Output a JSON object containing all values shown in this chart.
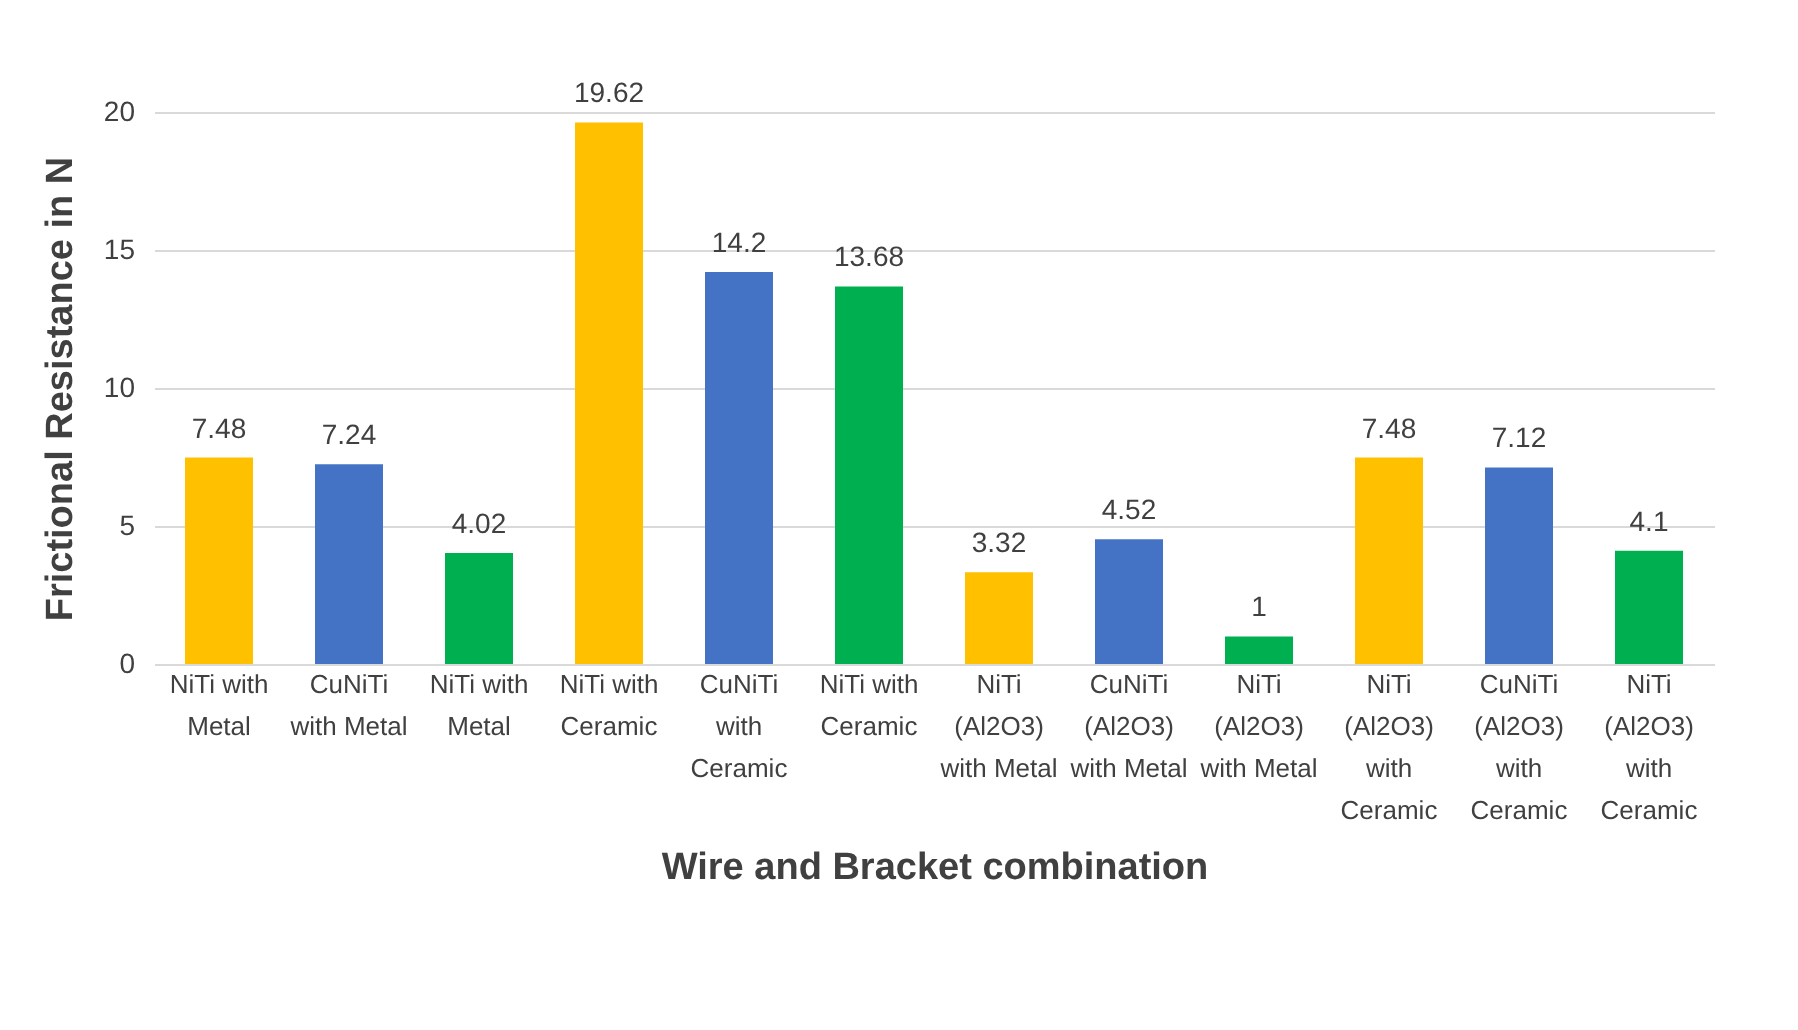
{
  "chart_data": {
    "type": "bar",
    "xlabel": "Wire and Bracket combination",
    "ylabel": "Frictional Resistance in N",
    "categories": [
      "NiTi with Metal",
      "CuNiTi with Metal",
      "NiTi with Metal",
      "NiTi with Ceramic",
      "CuNiTi with Ceramic",
      "NiTi with Ceramic",
      "NiTi (Al2O3) with Metal",
      "CuNiTi (Al2O3) with Metal",
      "NiTi (Al2O3) with Metal",
      "NiTi (Al2O3) with Ceramic",
      "CuNiTi (Al2O3) with Ceramic",
      "NiTi (Al2O3) with Ceramic"
    ],
    "values": [
      7.48,
      7.24,
      4.02,
      19.62,
      14.2,
      13.68,
      3.32,
      4.52,
      1,
      7.48,
      7.12,
      4.1
    ],
    "colors": [
      "#ffc000",
      "#4472c4",
      "#00b050",
      "#ffc000",
      "#4472c4",
      "#00b050",
      "#ffc000",
      "#4472c4",
      "#00b050",
      "#ffc000",
      "#4472c4",
      "#00b050"
    ],
    "ylim": [
      0,
      20
    ],
    "yticks": [
      0,
      5,
      10,
      15,
      20
    ],
    "grid": "y",
    "data_labels": true
  }
}
